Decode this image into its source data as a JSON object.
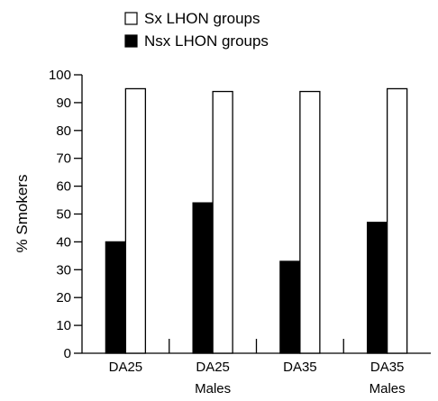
{
  "chart_data": {
    "type": "bar",
    "categories": [
      {
        "label": "DA25",
        "sublabel": ""
      },
      {
        "label": "DA25",
        "sublabel": "Males"
      },
      {
        "label": "DA35",
        "sublabel": ""
      },
      {
        "label": "DA35",
        "sublabel": "Males"
      }
    ],
    "series": [
      {
        "name": "Nsx LHON groups",
        "color": "#000000",
        "values": [
          40,
          54,
          33,
          47
        ]
      },
      {
        "name": "Sx LHON groups",
        "color": "#ffffff",
        "values": [
          95,
          94,
          94,
          95
        ]
      }
    ],
    "ylabel": "% Smokers",
    "ylim": [
      0,
      100
    ],
    "yticks": [
      0,
      10,
      20,
      30,
      40,
      50,
      60,
      70,
      80,
      90,
      100
    ],
    "legend": {
      "placement": "top",
      "order": [
        "Sx LHON groups",
        "Nsx LHON groups"
      ]
    },
    "grid": false
  }
}
